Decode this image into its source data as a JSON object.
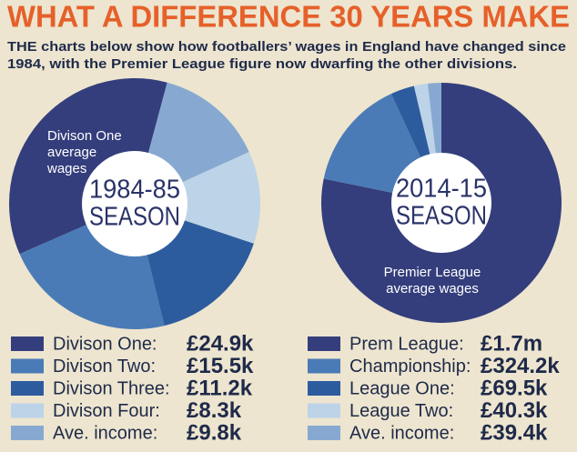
{
  "title": "WHAT A DIFFERENCE 30 YEARS MAKE",
  "subtitle": [
    "THE charts below show how footballers’ wages in England have changed since",
    "1984, with the Premier League figure now dwarfing the other divisions."
  ],
  "chart_data": [
    {
      "type": "pie",
      "center_label": [
        "1984-85",
        "SEASON"
      ],
      "annotation": [
        "Divison One",
        "average",
        "wages"
      ],
      "categories": [
        "Divison One:",
        "Divison Two:",
        "Divison Three:",
        "Divison Four:",
        "Ave. income:"
      ],
      "values": [
        24.9,
        15.5,
        11.2,
        8.3,
        9.8
      ],
      "value_labels": [
        "£24.9k",
        "£15.5k",
        "£11.2k",
        "£8.3k",
        "£9.8k"
      ],
      "colors": [
        "#343e7c",
        "#4a7bb6",
        "#2d5c9e",
        "#bdd3e8",
        "#87a9d1"
      ]
    },
    {
      "type": "pie",
      "center_label": [
        "2014-15",
        "SEASON"
      ],
      "annotation": [
        "Premier League",
        "average wages"
      ],
      "categories": [
        "Prem League:",
        "Championship:",
        "League One:",
        "League Two:",
        "Ave. income:"
      ],
      "values": [
        1700,
        324.2,
        69.5,
        40.3,
        39.4
      ],
      "value_labels": [
        "£1.7m",
        "£324.2k",
        "£69.5k",
        "£40.3k",
        "£39.4k"
      ],
      "colors": [
        "#343e7c",
        "#4a7bb6",
        "#2d5c9e",
        "#bdd3e8",
        "#87a9d1"
      ]
    }
  ]
}
